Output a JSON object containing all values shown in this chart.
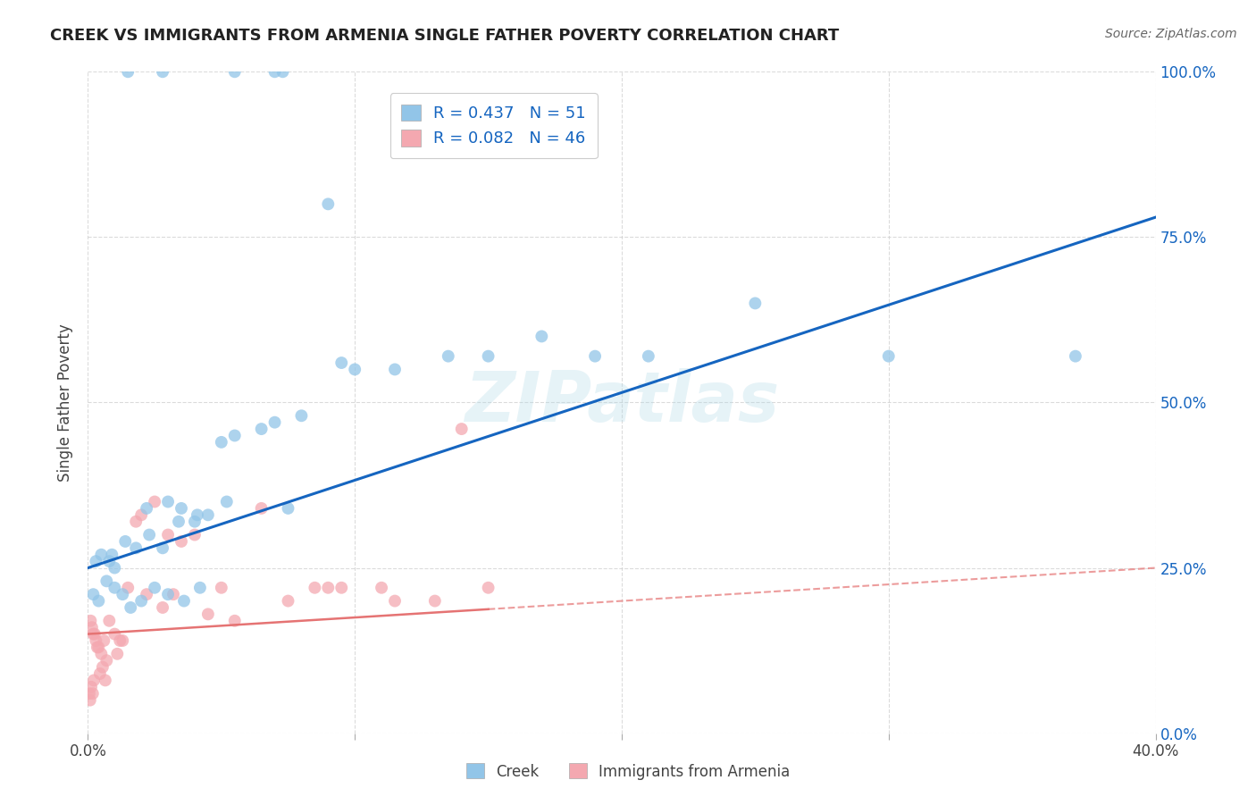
{
  "title": "CREEK VS IMMIGRANTS FROM ARMENIA SINGLE FATHER POVERTY CORRELATION CHART",
  "source": "Source: ZipAtlas.com",
  "ylabel": "Single Father Poverty",
  "ytick_vals": [
    0.0,
    25.0,
    50.0,
    75.0,
    100.0
  ],
  "xlim": [
    0.0,
    40.0
  ],
  "ylim": [
    0.0,
    100.0
  ],
  "creek_R": 0.437,
  "creek_N": 51,
  "armenia_R": 0.082,
  "armenia_N": 46,
  "creek_color": "#92C5E8",
  "armenia_color": "#F4A8B0",
  "creek_line_color": "#1565C0",
  "armenia_line_color": "#E57373",
  "watermark": "ZIPatlas",
  "legend_creek": "Creek",
  "legend_armenia": "Immigrants from Armenia",
  "creek_line_x0": 0.0,
  "creek_line_y0": 25.0,
  "creek_line_x1": 40.0,
  "creek_line_y1": 78.0,
  "armenia_line_x0": 0.0,
  "armenia_line_y0": 15.0,
  "armenia_line_x1": 40.0,
  "armenia_line_y1": 25.0,
  "creek_scatter_x": [
    1.5,
    2.8,
    5.5,
    7.0,
    7.3,
    0.3,
    0.5,
    0.8,
    1.0,
    1.8,
    2.2,
    3.0,
    3.5,
    4.0,
    4.5,
    5.0,
    5.5,
    6.5,
    7.0,
    8.0,
    9.5,
    10.0,
    11.5,
    13.5,
    15.0,
    17.0,
    19.0,
    21.0,
    25.0,
    30.0,
    37.0,
    0.2,
    0.4,
    0.7,
    1.0,
    1.3,
    1.6,
    2.0,
    2.5,
    3.0,
    3.6,
    4.2,
    0.9,
    1.4,
    2.3,
    2.8,
    3.4,
    4.1,
    5.2,
    7.5,
    9.0
  ],
  "creek_scatter_y": [
    100.0,
    100.0,
    100.0,
    100.0,
    100.0,
    26.0,
    27.0,
    26.0,
    25.0,
    28.0,
    34.0,
    35.0,
    34.0,
    32.0,
    33.0,
    44.0,
    45.0,
    46.0,
    47.0,
    48.0,
    56.0,
    55.0,
    55.0,
    57.0,
    57.0,
    60.0,
    57.0,
    57.0,
    65.0,
    57.0,
    57.0,
    21.0,
    20.0,
    23.0,
    22.0,
    21.0,
    19.0,
    20.0,
    22.0,
    21.0,
    20.0,
    22.0,
    27.0,
    29.0,
    30.0,
    28.0,
    32.0,
    33.0,
    35.0,
    34.0,
    80.0
  ],
  "armenia_scatter_x": [
    0.1,
    0.15,
    0.2,
    0.25,
    0.3,
    0.35,
    0.4,
    0.5,
    0.6,
    0.7,
    0.8,
    1.0,
    1.2,
    1.5,
    1.8,
    2.0,
    2.5,
    3.0,
    3.5,
    4.0,
    5.0,
    6.5,
    8.5,
    9.0,
    11.0,
    13.0,
    15.0,
    0.05,
    0.08,
    0.12,
    0.18,
    0.22,
    0.45,
    0.55,
    0.65,
    1.1,
    1.3,
    2.2,
    2.8,
    3.2,
    4.5,
    5.5,
    7.5,
    9.5,
    11.5,
    14.0
  ],
  "armenia_scatter_y": [
    17.0,
    16.0,
    15.0,
    15.0,
    14.0,
    13.0,
    13.0,
    12.0,
    14.0,
    11.0,
    17.0,
    15.0,
    14.0,
    22.0,
    32.0,
    33.0,
    35.0,
    30.0,
    29.0,
    30.0,
    22.0,
    34.0,
    22.0,
    22.0,
    22.0,
    20.0,
    22.0,
    6.0,
    5.0,
    7.0,
    6.0,
    8.0,
    9.0,
    10.0,
    8.0,
    12.0,
    14.0,
    21.0,
    19.0,
    21.0,
    18.0,
    17.0,
    20.0,
    22.0,
    20.0,
    46.0
  ],
  "background_color": "#ffffff",
  "grid_color": "#cccccc"
}
